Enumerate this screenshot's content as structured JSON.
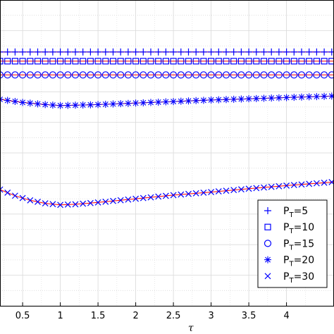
{
  "chart_data": {
    "type": "line",
    "xlabel": "τ",
    "ylabel": "",
    "title": "",
    "xlim": [
      0.2,
      4.63
    ],
    "ylim": [
      0.0,
      1.0
    ],
    "x_ticks": [
      "0.5",
      "1",
      "1.5",
      "2",
      "2.5",
      "3",
      "3.5",
      "4"
    ],
    "grid": true,
    "legend_position": "bottom-right",
    "colors": {
      "marker": "#0000ff",
      "line": "#ff0000",
      "grid": "#d9d9d9",
      "axes": "#000000"
    },
    "series": [
      {
        "legend_main": "P",
        "legend_sub": "T",
        "legend_value": "=5",
        "marker": "plus",
        "x": [
          0.2,
          4.63
        ],
        "y": [
          0.83,
          0.83
        ]
      },
      {
        "legend_main": "P",
        "legend_sub": "T",
        "legend_value": "=10",
        "marker": "square",
        "x": [
          0.2,
          4.63
        ],
        "y": [
          0.8,
          0.8
        ]
      },
      {
        "legend_main": "P",
        "legend_sub": "T",
        "legend_value": "=15",
        "marker": "circle",
        "x": [
          0.2,
          4.63
        ],
        "y": [
          0.755,
          0.755
        ]
      },
      {
        "legend_main": "P",
        "legend_sub": "T",
        "legend_value": "=20",
        "marker": "star",
        "x": [
          0.2,
          0.5,
          0.8,
          1.0,
          1.2,
          1.5,
          2.0,
          2.5,
          3.0,
          3.5,
          4.0,
          4.63
        ],
        "y": [
          0.675,
          0.665,
          0.658,
          0.655,
          0.656,
          0.658,
          0.663,
          0.668,
          0.673,
          0.677,
          0.681,
          0.686
        ]
      },
      {
        "legend_main": "P",
        "legend_sub": "T",
        "legend_value": "=30",
        "marker": "x",
        "x": [
          0.2,
          0.4,
          0.6,
          0.8,
          1.0,
          1.2,
          1.5,
          2.0,
          2.5,
          3.0,
          3.5,
          4.0,
          4.63
        ],
        "y": [
          0.38,
          0.36,
          0.345,
          0.335,
          0.33,
          0.332,
          0.338,
          0.35,
          0.362,
          0.372,
          0.383,
          0.393,
          0.405
        ]
      }
    ]
  }
}
